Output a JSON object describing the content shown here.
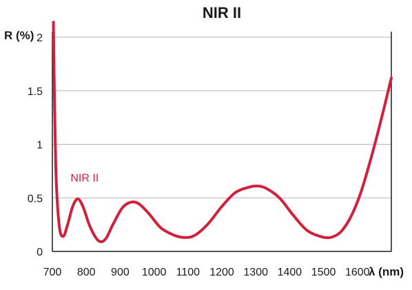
{
  "chart_data": {
    "type": "line",
    "title": "NIR II",
    "ylabel": "R (%)",
    "xlabel": "λ (nm)",
    "xlim": [
      700,
      1700
    ],
    "ylim": [
      0,
      2
    ],
    "x_ticks": [
      "700",
      "800",
      "900",
      "1000",
      "1100",
      "1200",
      "1300",
      "1400",
      "1500",
      "1600"
    ],
    "y_ticks": [
      "0",
      "0.5",
      "1",
      "1.5",
      "2"
    ],
    "grid": true,
    "colors": {
      "series": "#d21f3c",
      "grid": "#b3b3b3",
      "axis": "#1a1a1a"
    },
    "series": [
      {
        "name": "NIR II",
        "color": "#d21f3c",
        "x": [
          703,
          710,
          720,
          732,
          745,
          760,
          775,
          790,
          810,
          830,
          845,
          860,
          880,
          910,
          945,
          980,
          1020,
          1060,
          1090,
          1120,
          1160,
          1200,
          1240,
          1280,
          1305,
          1330,
          1370,
          1410,
          1450,
          1490,
          1520,
          1550,
          1580,
          1610,
          1640,
          1670,
          1700
        ],
        "y": [
          2.14,
          0.8,
          0.25,
          0.14,
          0.25,
          0.42,
          0.49,
          0.42,
          0.24,
          0.12,
          0.09,
          0.13,
          0.26,
          0.42,
          0.46,
          0.37,
          0.22,
          0.15,
          0.13,
          0.15,
          0.26,
          0.42,
          0.55,
          0.6,
          0.61,
          0.59,
          0.5,
          0.34,
          0.2,
          0.14,
          0.13,
          0.18,
          0.32,
          0.55,
          0.87,
          1.23,
          1.62
        ]
      }
    ],
    "annotations": [
      {
        "text": "NIR II",
        "x": 778,
        "y": 0.6
      }
    ]
  }
}
